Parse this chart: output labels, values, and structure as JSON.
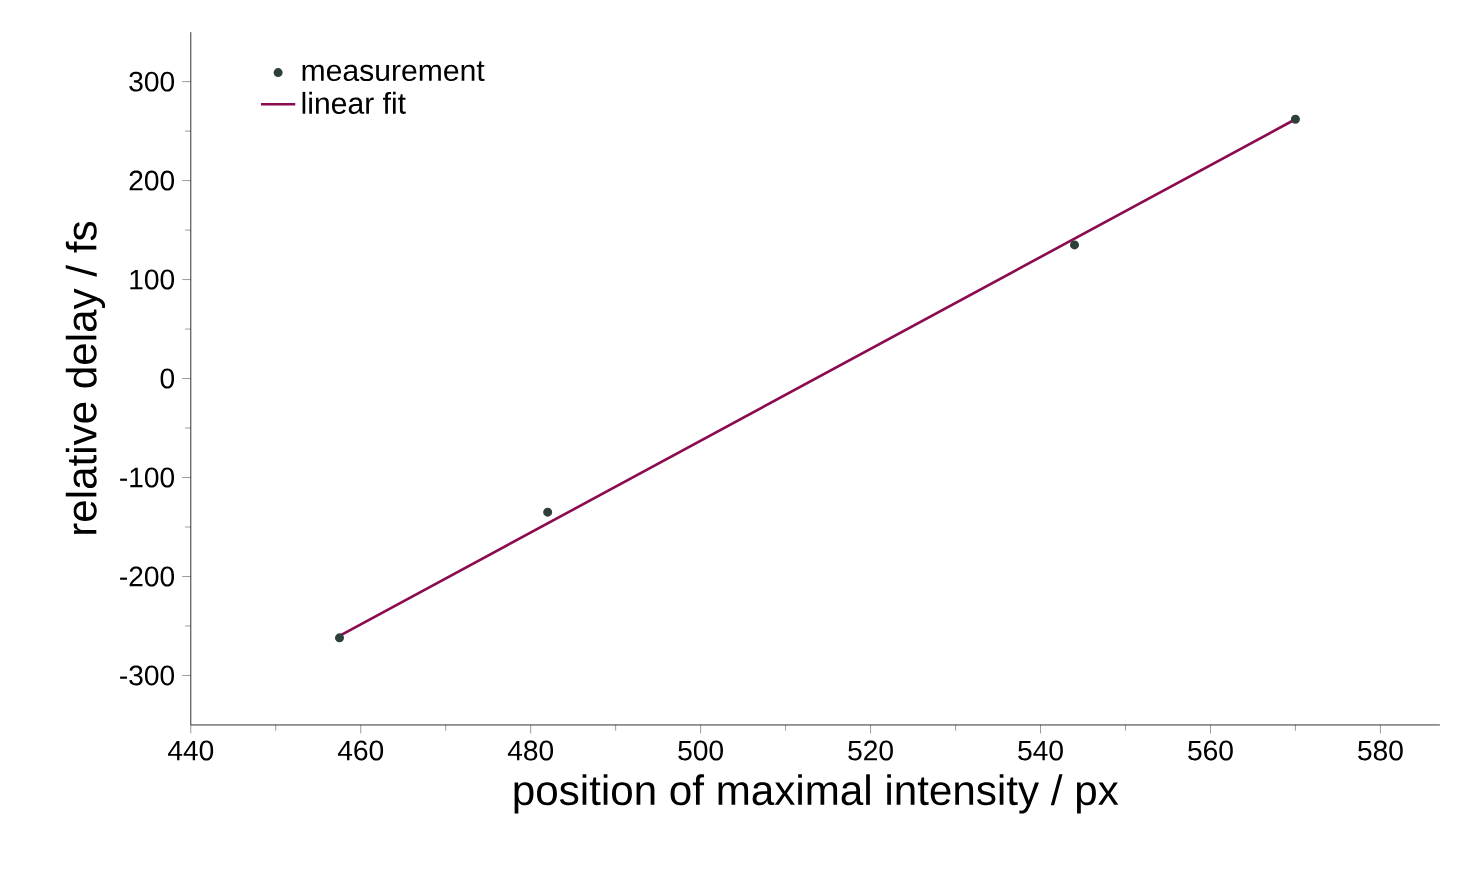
{
  "chart_data": {
    "type": "scatter",
    "xlabel": "position of maximal intensity / px",
    "ylabel": "relative delay / fs",
    "xlim": [
      440,
      587
    ],
    "ylim": [
      -350,
      350
    ],
    "xticks": [
      440,
      460,
      480,
      500,
      520,
      540,
      560,
      580
    ],
    "yticks": [
      -300,
      -200,
      -100,
      0,
      100,
      200,
      300
    ],
    "legend": "top left",
    "grid": false,
    "series": [
      {
        "name": "measurement",
        "marker": "circle",
        "color": "#2f3f3a",
        "x": [
          457.5,
          482,
          544,
          570
        ],
        "values": [
          -262,
          -135,
          135,
          262
        ]
      },
      {
        "name": "linear fit",
        "type": "line",
        "marker": "none",
        "line_style": "solid",
        "color": "#8b0a50",
        "x": [
          457.5,
          570
        ],
        "values": [
          -260,
          262
        ]
      }
    ]
  }
}
